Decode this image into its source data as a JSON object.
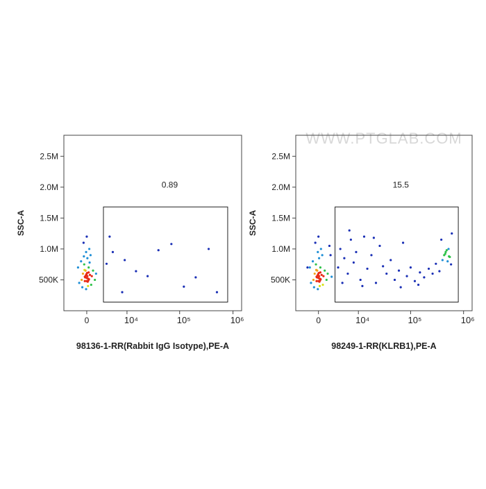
{
  "chart_data": [
    {
      "type": "scatter",
      "xscale": "biexponential",
      "xlabel": "98136-1-RR(Rabbit IgG Isotype),PE-A",
      "ylabel": "SSC-A",
      "xlim": [
        -4200,
        1450000
      ],
      "ylim": [
        0,
        2840000
      ],
      "xticks": [
        0,
        {
          "value": 10000,
          "label": "10⁴"
        },
        {
          "value": 100000,
          "label": "10⁵"
        },
        {
          "value": 1000000,
          "label": "10⁶"
        }
      ],
      "yticks": [
        {
          "value": 500000,
          "label": "500K"
        },
        {
          "value": 1000000,
          "label": "1.0M"
        },
        {
          "value": 1500000,
          "label": "1.5M"
        },
        {
          "value": 2000000,
          "label": "2.0M"
        },
        {
          "value": 2500000,
          "label": "2.5M"
        }
      ],
      "gate": {
        "x": [
          2850,
          795000
        ],
        "y": [
          140000,
          1680000
        ]
      },
      "gate_percent": 0.89,
      "x": [
        -300,
        200,
        -600,
        500,
        0,
        -200,
        300,
        -800,
        800,
        -400,
        100,
        -100,
        400,
        -500,
        0,
        600,
        -900,
        1000,
        -1200,
        1300,
        200,
        -100,
        700,
        -700,
        1500,
        -1400,
        300,
        -300,
        100,
        0,
        -50,
        150,
        -250,
        350,
        -150,
        50,
        250,
        -350,
        450,
        -450,
        5000,
        9000,
        15000,
        40000,
        70000,
        120000,
        200000,
        350000,
        500000,
        8000,
        25000,
        3500,
        4200
      ],
      "y": [
        550000,
        520000,
        600000,
        580000,
        480000,
        650000,
        700000,
        500000,
        560000,
        750000,
        850000,
        950000,
        1000000,
        1100000,
        1200000,
        900000,
        800000,
        650000,
        450000,
        500000,
        400000,
        350000,
        420000,
        380000,
        600000,
        700000,
        620000,
        480000,
        560000,
        530000,
        590000,
        470000,
        540000,
        510000,
        570000,
        610000,
        490000,
        660000,
        780000,
        880000,
        950000,
        820000,
        640000,
        980000,
        1080000,
        390000,
        540000,
        1000000,
        300000,
        300000,
        560000,
        760000,
        1200000
      ]
    },
    {
      "type": "scatter",
      "xscale": "biexponential",
      "xlabel": "98249-1-RR(KLRB1),PE-A",
      "ylabel": "SSC-A",
      "watermark": "WWW.PTGLAB.COM",
      "xlim": [
        -4200,
        1450000
      ],
      "ylim": [
        0,
        2840000
      ],
      "xticks": [
        0,
        {
          "value": 10000,
          "label": "10⁴"
        },
        {
          "value": 100000,
          "label": "10⁵"
        },
        {
          "value": 1000000,
          "label": "10⁶"
        }
      ],
      "yticks": [
        {
          "value": 500000,
          "label": "500K"
        },
        {
          "value": 1000000,
          "label": "1.0M"
        },
        {
          "value": 1500000,
          "label": "1.5M"
        },
        {
          "value": 2000000,
          "label": "2.0M"
        },
        {
          "value": 2500000,
          "label": "2.5M"
        }
      ],
      "gate": {
        "x": [
          2850,
          795000
        ],
        "y": [
          140000,
          1680000
        ]
      },
      "gate_percent": 15.5,
      "x": [
        -300,
        200,
        -600,
        500,
        0,
        -200,
        300,
        -800,
        800,
        -400,
        100,
        -100,
        400,
        -500,
        0,
        600,
        -900,
        1000,
        -1200,
        1300,
        200,
        -100,
        700,
        -700,
        1500,
        -1400,
        300,
        -300,
        100,
        0,
        -50,
        150,
        -250,
        350,
        -150,
        50,
        250,
        -350,
        2000,
        -1800,
        1800,
        2200,
        3500,
        4000,
        5000,
        6000,
        7000,
        8000,
        9000,
        11000,
        13000,
        15000,
        18000,
        22000,
        26000,
        30000,
        35000,
        42000,
        50000,
        60000,
        72000,
        85000,
        100000,
        120000,
        150000,
        180000,
        220000,
        260000,
        300000,
        350000,
        400000,
        430000,
        460000,
        500000,
        520000,
        550000,
        580000,
        450000,
        480000,
        530000,
        600000,
        4500,
        6500,
        12000,
        20000,
        65000,
        140000,
        380000
      ],
      "y": [
        550000,
        520000,
        600000,
        580000,
        480000,
        650000,
        700000,
        500000,
        560000,
        750000,
        850000,
        950000,
        1000000,
        1100000,
        1200000,
        900000,
        800000,
        650000,
        450000,
        500000,
        400000,
        350000,
        420000,
        380000,
        600000,
        700000,
        620000,
        480000,
        560000,
        530000,
        590000,
        470000,
        540000,
        510000,
        570000,
        610000,
        490000,
        660000,
        900000,
        700000,
        1050000,
        550000,
        700000,
        1000000,
        850000,
        600000,
        1150000,
        780000,
        950000,
        500000,
        1200000,
        680000,
        900000,
        450000,
        1050000,
        720000,
        600000,
        820000,
        500000,
        650000,
        1100000,
        560000,
        700000,
        480000,
        620000,
        540000,
        680000,
        600000,
        760000,
        640000,
        820000,
        900000,
        950000,
        800000,
        1000000,
        870000,
        750000,
        920000,
        980000,
        880000,
        1250000,
        450000,
        1300000,
        400000,
        1180000,
        380000,
        420000,
        1150000
      ]
    }
  ]
}
